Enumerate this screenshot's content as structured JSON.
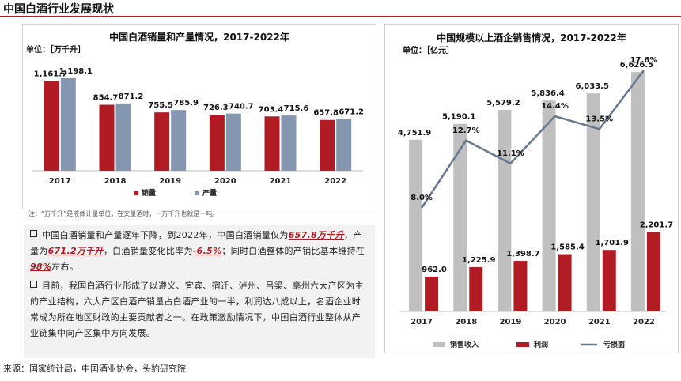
{
  "page": {
    "title": "中国白酒行业发展现状",
    "note": "注：“万千升”是液体计量单位，在文量酒时，一万千升也就是一吨。",
    "source": "来源：国家统计局，中国酒业协会，头豹研究院"
  },
  "bullets": [
    {
      "segments": [
        {
          "text": "中国白酒销量和产量逐年下降，到2022年，中国白酒销量仅为",
          "hl": false
        },
        {
          "text": "657.8万千升",
          "hl": true
        },
        {
          "text": "，产量为",
          "hl": false
        },
        {
          "text": "671.2万千升",
          "hl": true
        },
        {
          "text": "，白酒销量变化比率为",
          "hl": false
        },
        {
          "text": "-6.5%",
          "hl": true
        },
        {
          "text": "；同时白酒整体的产销比基本维持在",
          "hl": false
        },
        {
          "text": "98%",
          "hl": true
        },
        {
          "text": "左右。",
          "hl": false
        }
      ]
    },
    {
      "segments": [
        {
          "text": "目前，我国白酒行业形成了以遵义、宜宾、宿迁、泸州、吕梁、亳州六大产区为主的产业结构，六大产区白酒产销量占白酒产业的一半，利润达八成以上，名酒企业时常成为所在地区财政的主要贡献者之一。在政策激励情况下，中国白酒行业整体从产业链集中向产区集中方向发展。",
          "hl": false
        }
      ]
    }
  ],
  "chart_data": [
    {
      "type": "bar",
      "title": "中国白酒销量和产量情况，2017-2022年",
      "unit_label": "单位：［万千升］",
      "categories": [
        "2017",
        "2018",
        "2019",
        "2020",
        "2021",
        "2022"
      ],
      "series": [
        {
          "name": "销量",
          "color": "#b11c24",
          "values": [
            1161.7,
            854.7,
            755.5,
            726.3,
            703.4,
            657.8
          ]
        },
        {
          "name": "产量",
          "color": "#8496b0",
          "values": [
            1198.1,
            871.2,
            785.9,
            740.7,
            715.6,
            671.2
          ]
        }
      ],
      "value_labels": {
        "销量": [
          "1,161.7",
          "854.7",
          "755.5",
          "726.3",
          "703.4",
          "657.8"
        ],
        "产量": [
          "1,198.1",
          "871.2",
          "785.9",
          "740.7",
          "715.6",
          "671.2"
        ]
      },
      "ylim": [
        0,
        1300
      ],
      "legend": "bottom"
    },
    {
      "type": "bar+line",
      "title": "中国规模以上酒企销售情况，2017-2022年",
      "unit_label": "单位：［亿元］",
      "categories": [
        "2017",
        "2018",
        "2019",
        "2020",
        "2021",
        "2022"
      ],
      "series": [
        {
          "name": "销售收入",
          "type": "bar",
          "color": "#bfbfbf",
          "values": [
            4751.9,
            5190.1,
            5579.2,
            5836.4,
            6033.5,
            6626.5
          ]
        },
        {
          "name": "利润",
          "type": "bar",
          "color": "#b11c24",
          "values": [
            962.0,
            1225.9,
            1398.7,
            1585.4,
            1701.9,
            2201.7
          ]
        },
        {
          "name": "亏损面",
          "type": "line",
          "color": "#66788f",
          "values": [
            8.0,
            12.7,
            11.1,
            14.4,
            13.5,
            17.6
          ],
          "unit": "%"
        }
      ],
      "value_labels": {
        "销售收入": [
          "4,751.9",
          "5,190.1",
          "5,579.2",
          "5,836.4",
          "6,033.5",
          "6,626.5"
        ],
        "利润": [
          "962.0",
          "1,225.9",
          "1,398.7",
          "1,585.4",
          "1,701.9",
          "2,201.7"
        ],
        "亏损面": [
          "8.0%",
          "12.7%",
          "11.1%",
          "14.4%",
          "13.5%",
          "17.6%"
        ]
      },
      "ylim": [
        0,
        7000
      ],
      "line_ylim": [
        0,
        20
      ],
      "legend": "bottom"
    }
  ]
}
